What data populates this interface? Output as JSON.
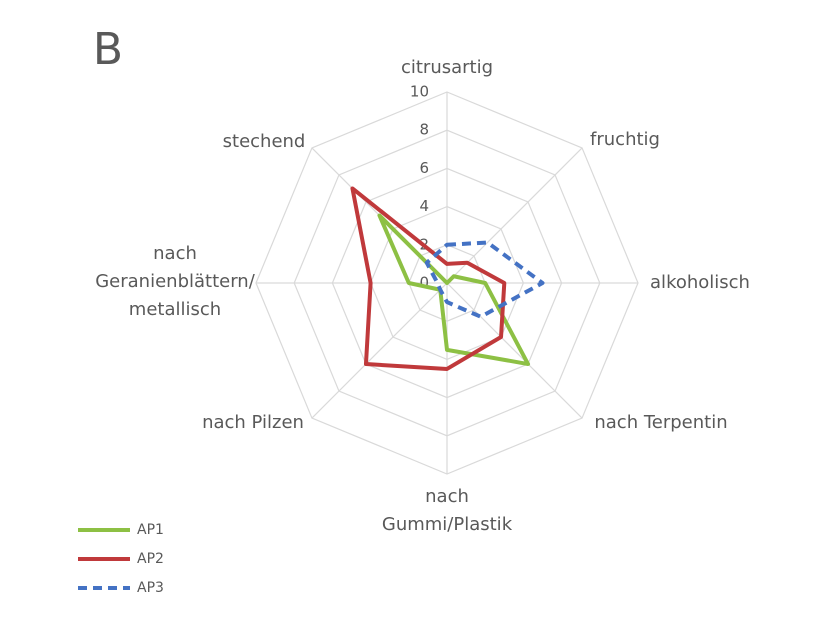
{
  "chart_data": {
    "type": "radar",
    "title": "B",
    "categories": [
      "citrusartig",
      "fruchtig",
      "alkoholisch",
      "nach Terpentin",
      "nach\nGummi/Plastik",
      "nach Pilzen",
      "nach\nGeranienblättern/\nmetallisch",
      "stechend"
    ],
    "series": [
      {
        "name": "AP1",
        "color": "#8dc044",
        "dash": false,
        "values": [
          0,
          0.5,
          2,
          6,
          3.5,
          0.5,
          2,
          5
        ]
      },
      {
        "name": "AP2",
        "color": "#c0393b",
        "dash": false,
        "values": [
          1,
          1.5,
          3,
          4,
          4.5,
          6,
          4,
          7
        ]
      },
      {
        "name": "AP3",
        "color": "#4472c4",
        "dash": true,
        "values": [
          2,
          3,
          5,
          2.5,
          1,
          0.5,
          0.5,
          1.5
        ]
      }
    ],
    "ylim": [
      0,
      10
    ],
    "yticks": [
      0,
      2,
      4,
      6,
      8,
      10
    ],
    "grid": true,
    "legend": "bottom-left"
  }
}
